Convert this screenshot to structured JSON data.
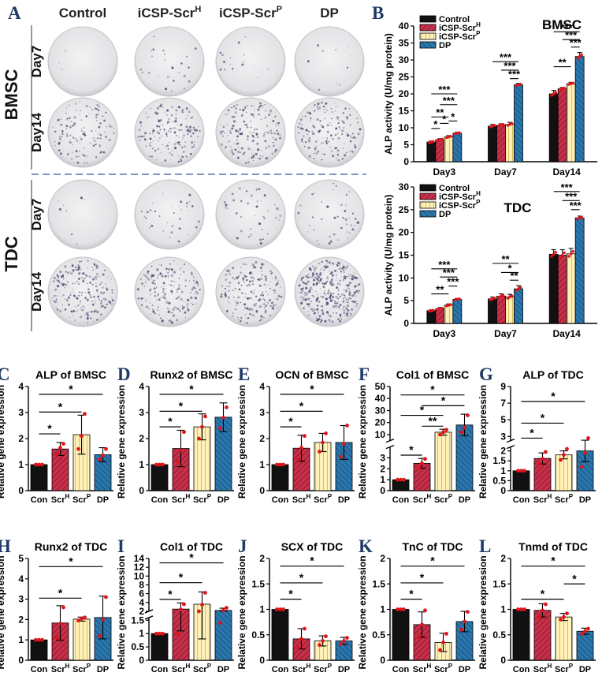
{
  "colors": {
    "control": "#111111",
    "scrH": "#c8304a",
    "scrP": "#fff1b8",
    "dp": "#2a77ad",
    "point": "#e0141b",
    "panel_letter": "#1f3a66",
    "plate": "#e8e8ea",
    "dots": "#4a4670"
  },
  "panel_a": {
    "letter": "A",
    "columns": [
      "Control",
      "iCSP-Scr",
      "iCSP-Scr",
      "DP"
    ],
    "column_sups": [
      "",
      "H",
      "P",
      ""
    ],
    "groups": [
      {
        "label": "BMSC",
        "rows": [
          "Day7",
          "Day14"
        ]
      },
      {
        "label": "TDC",
        "rows": [
          "Day7",
          "Day14"
        ]
      }
    ],
    "stain_density": [
      [
        3,
        25,
        18,
        10
      ],
      [
        130,
        165,
        170,
        150
      ],
      [
        8,
        35,
        45,
        45
      ],
      [
        210,
        180,
        190,
        360
      ]
    ]
  },
  "legend": {
    "items": [
      {
        "text": "Control",
        "sup": ""
      },
      {
        "text": "iCSP-Scr",
        "sup": "H"
      },
      {
        "text": "iCSP-Scr",
        "sup": "P"
      },
      {
        "text": "DP",
        "sup": ""
      }
    ]
  },
  "chart_data": [
    {
      "id": "B-BMSC",
      "letter": "B",
      "type": "bar",
      "title": "BMSC",
      "ylabel": "ALP activity (U/mg protein)",
      "ylim": [
        0,
        40
      ],
      "yticks": [
        0,
        5,
        10,
        15,
        20,
        25,
        30,
        35,
        40
      ],
      "categories": [
        "Day3",
        "Day7",
        "Day14"
      ],
      "series": [
        {
          "name": "Control",
          "values": [
            5.8,
            10.5,
            20.0
          ],
          "errors": [
            0.3,
            0.5,
            1.0
          ]
        },
        {
          "name": "iCSP-ScrH",
          "values": [
            6.5,
            10.8,
            21.5
          ],
          "errors": [
            0.3,
            0.4,
            0.4
          ]
        },
        {
          "name": "iCSP-ScrP",
          "values": [
            7.3,
            11.0,
            23.0
          ],
          "errors": [
            0.4,
            0.6,
            0.4
          ]
        },
        {
          "name": "DP",
          "values": [
            8.4,
            22.7,
            31.0
          ],
          "errors": [
            0.3,
            0.4,
            1.2
          ]
        }
      ],
      "significance": [
        {
          "cat": 0,
          "from": 0,
          "to": 1,
          "y": 9.8,
          "text": "*"
        },
        {
          "cat": 0,
          "from": 1,
          "to": 2,
          "y": 11.3,
          "text": "*"
        },
        {
          "cat": 0,
          "from": 2,
          "to": 3,
          "y": 12.0,
          "text": "*"
        },
        {
          "cat": 0,
          "from": 0,
          "to": 2,
          "y": 13.2,
          "text": "**"
        },
        {
          "cat": 0,
          "from": 1,
          "to": 3,
          "y": 16.8,
          "text": "***"
        },
        {
          "cat": 0,
          "from": 0,
          "to": 3,
          "y": 20.0,
          "text": "***"
        },
        {
          "cat": 1,
          "from": 2,
          "to": 3,
          "y": 24.5,
          "text": "***"
        },
        {
          "cat": 1,
          "from": 1,
          "to": 3,
          "y": 27.0,
          "text": "***"
        },
        {
          "cat": 1,
          "from": 0,
          "to": 3,
          "y": 29.5,
          "text": "***"
        },
        {
          "cat": 2,
          "from": 0,
          "to": 2,
          "y": 28.0,
          "text": "**"
        },
        {
          "cat": 2,
          "from": 2,
          "to": 3,
          "y": 33.8,
          "text": "***"
        },
        {
          "cat": 2,
          "from": 1,
          "to": 3,
          "y": 36.0,
          "text": "***"
        },
        {
          "cat": 2,
          "from": 0,
          "to": 3,
          "y": 38.3,
          "text": "***"
        }
      ]
    },
    {
      "id": "B-TDC",
      "letter": "",
      "type": "bar",
      "title": "TDC",
      "ylabel": "ALP activity (U/mg protein)",
      "ylim": [
        0,
        30
      ],
      "yticks": [
        0,
        5,
        10,
        15,
        20,
        25,
        30
      ],
      "categories": [
        "Day3",
        "Day7",
        "Day14"
      ],
      "series": [
        {
          "name": "Control",
          "values": [
            2.8,
            5.4,
            15.2
          ],
          "errors": [
            0.2,
            0.4,
            1.0
          ]
        },
        {
          "name": "iCSP-ScrH",
          "values": [
            3.2,
            6.0,
            15.0
          ],
          "errors": [
            0.3,
            0.5,
            1.2
          ]
        },
        {
          "name": "iCSP-ScrP",
          "values": [
            4.0,
            5.8,
            15.3
          ],
          "errors": [
            0.3,
            0.6,
            1.2
          ]
        },
        {
          "name": "DP",
          "values": [
            5.3,
            7.6,
            23.2
          ],
          "errors": [
            0.2,
            0.7,
            0.4
          ]
        }
      ],
      "significance": [
        {
          "cat": 0,
          "from": 0,
          "to": 2,
          "y": 6.5,
          "text": "**"
        },
        {
          "cat": 0,
          "from": 2,
          "to": 3,
          "y": 8.2,
          "text": "***"
        },
        {
          "cat": 0,
          "from": 1,
          "to": 3,
          "y": 10.2,
          "text": "***"
        },
        {
          "cat": 0,
          "from": 0,
          "to": 3,
          "y": 12.0,
          "text": "***"
        },
        {
          "cat": 1,
          "from": 2,
          "to": 3,
          "y": 9.5,
          "text": "**"
        },
        {
          "cat": 1,
          "from": 1,
          "to": 3,
          "y": 11.2,
          "text": "*"
        },
        {
          "cat": 1,
          "from": 0,
          "to": 3,
          "y": 13.2,
          "text": "**"
        },
        {
          "cat": 2,
          "from": 2,
          "to": 3,
          "y": 25.0,
          "text": "***"
        },
        {
          "cat": 2,
          "from": 1,
          "to": 3,
          "y": 27.0,
          "text": "***"
        },
        {
          "cat": 2,
          "from": 0,
          "to": 3,
          "y": 29.0,
          "text": "***"
        }
      ]
    },
    {
      "id": "C",
      "letter": "C",
      "type": "bar",
      "title": "ALP of BMSC",
      "ylabel": "Relative gene expression",
      "ylim": [
        0,
        4
      ],
      "yticks": [
        0,
        1,
        2,
        3,
        4
      ],
      "categories": [
        "Con",
        "Scr",
        "Scr",
        "DP"
      ],
      "cat_sups": [
        "",
        "H",
        "P",
        ""
      ],
      "values": [
        1.0,
        1.6,
        2.15,
        1.38
      ],
      "errors": [
        0.02,
        0.25,
        0.75,
        0.27
      ],
      "points": [
        [
          1.0,
          1.0,
          1.0
        ],
        [
          1.4,
          1.65,
          1.8
        ],
        [
          1.6,
          2.1,
          2.95
        ],
        [
          1.2,
          1.35,
          1.6
        ]
      ],
      "significance": [
        {
          "from": 0,
          "to": 1,
          "y": 2.18,
          "text": "*"
        },
        {
          "from": 0,
          "to": 2,
          "y": 3.02,
          "text": "*"
        },
        {
          "from": 0,
          "to": 3,
          "y": 3.7,
          "text": "*"
        }
      ]
    },
    {
      "id": "D",
      "letter": "D",
      "type": "bar",
      "title": "Runx2 of BMSC",
      "ylabel": "Relative gene expression",
      "ylim": [
        0,
        4
      ],
      "yticks": [
        0,
        1,
        2,
        3,
        4
      ],
      "categories": [
        "Con",
        "Scr",
        "Scr",
        "DP"
      ],
      "cat_sups": [
        "",
        "H",
        "P",
        ""
      ],
      "values": [
        1.0,
        1.62,
        2.45,
        2.82
      ],
      "errors": [
        0.02,
        0.7,
        0.5,
        0.55
      ],
      "points": [
        [
          1.0,
          1.0,
          1.0
        ],
        [
          1.1,
          1.55,
          2.25
        ],
        [
          2.0,
          2.45,
          2.85
        ],
        [
          2.4,
          2.8,
          3.2
        ]
      ],
      "significance": [
        {
          "from": 0,
          "to": 1,
          "y": 2.45,
          "text": "*"
        },
        {
          "from": 0,
          "to": 2,
          "y": 3.05,
          "text": "*"
        },
        {
          "from": 0,
          "to": 3,
          "y": 3.7,
          "text": "*"
        }
      ]
    },
    {
      "id": "E",
      "letter": "E",
      "type": "bar",
      "title": "OCN of BMSC",
      "ylabel": "Relative gene expression",
      "ylim": [
        0,
        4
      ],
      "yticks": [
        0,
        1,
        2,
        3,
        4
      ],
      "categories": [
        "Con",
        "Scr",
        "Scr",
        "DP"
      ],
      "cat_sups": [
        "",
        "H",
        "P",
        ""
      ],
      "values": [
        1.0,
        1.63,
        1.85,
        1.85
      ],
      "errors": [
        0.02,
        0.5,
        0.35,
        0.65
      ],
      "points": [
        [
          1.0,
          1.0,
          1.0
        ],
        [
          1.2,
          1.65,
          2.1
        ],
        [
          1.5,
          1.85,
          2.2
        ],
        [
          1.3,
          1.8,
          2.5
        ]
      ],
      "significance": [
        {
          "from": 0,
          "to": 1,
          "y": 2.45,
          "text": "*"
        },
        {
          "from": 0,
          "to": 2,
          "y": 3.05,
          "text": "*"
        },
        {
          "from": 0,
          "to": 3,
          "y": 3.7,
          "text": "*"
        }
      ]
    },
    {
      "id": "F",
      "letter": "F",
      "type": "bar",
      "title": "Col1 of BMSC",
      "ylabel": "Relative gene expression",
      "axis_break": {
        "low": [
          0,
          4
        ],
        "high": [
          5,
          50
        ]
      },
      "yticks": [
        0,
        1,
        2,
        3,
        10,
        20,
        30,
        40,
        50
      ],
      "categories": [
        "Con",
        "Scr",
        "Scr",
        "DP"
      ],
      "cat_sups": [
        "",
        "H",
        "P",
        ""
      ],
      "values": [
        1.0,
        2.5,
        12.0,
        18.0
      ],
      "errors": [
        0.03,
        0.45,
        2.5,
        9.0
      ],
      "points": [
        [
          1.0,
          1.0,
          1.0
        ],
        [
          2.1,
          2.5,
          2.9
        ],
        [
          10.0,
          12.0,
          14.0
        ],
        [
          12.0,
          16.0,
          26.0
        ]
      ],
      "significance": [
        {
          "from": 0,
          "to": 1,
          "y": 3.25,
          "text": "*"
        },
        {
          "from": 1,
          "to": 2,
          "y": 17.0,
          "text": "**"
        },
        {
          "from": 0,
          "to": 2,
          "y": 26.0,
          "text": "*"
        },
        {
          "from": 1,
          "to": 3,
          "y": 34.0,
          "text": "*"
        },
        {
          "from": 0,
          "to": 3,
          "y": 43.0,
          "text": "*"
        }
      ]
    },
    {
      "id": "G",
      "letter": "G",
      "type": "bar",
      "title": "ALP of TDC",
      "ylabel": "Relative gene expression",
      "axis_break": {
        "low": [
          0,
          2.2
        ],
        "high": [
          2.5,
          9
        ]
      },
      "yticks": [
        0,
        0.5,
        1.0,
        1.5,
        2.0,
        3,
        5,
        7,
        9
      ],
      "categories": [
        "Con",
        "Scr",
        "Scr",
        "DP"
      ],
      "cat_sups": [
        "",
        "H",
        "P",
        ""
      ],
      "values": [
        1.0,
        1.62,
        1.8,
        2.0
      ],
      "errors": [
        0.02,
        0.28,
        0.2,
        0.55
      ],
      "points": [
        [
          1.0,
          1.0,
          1.0
        ],
        [
          1.35,
          1.6,
          1.95
        ],
        [
          1.55,
          1.8,
          2.1
        ],
        [
          1.2,
          1.9,
          2.8
        ]
      ],
      "significance": [
        {
          "from": 0,
          "to": 1,
          "y": 2.8,
          "text": "*"
        },
        {
          "from": 0,
          "to": 2,
          "y": 4.6,
          "text": "*"
        },
        {
          "from": 0,
          "to": 3,
          "y": 7.2,
          "text": "*"
        }
      ]
    },
    {
      "id": "H",
      "letter": "H",
      "type": "bar",
      "title": "Runx2 of TDC",
      "ylabel": "Relative gene expression",
      "ylim": [
        0,
        5
      ],
      "yticks": [
        0,
        1,
        2,
        3,
        4,
        5
      ],
      "categories": [
        "Con",
        "Scr",
        "Scr",
        "DP"
      ],
      "cat_sups": [
        "",
        "H",
        "P",
        ""
      ],
      "values": [
        1.0,
        1.83,
        2.02,
        2.1
      ],
      "errors": [
        0.02,
        0.85,
        0.1,
        1.05
      ],
      "points": [
        [
          1.0,
          1.0,
          1.0
        ],
        [
          1.1,
          1.8,
          2.6
        ],
        [
          1.95,
          2.05,
          2.1
        ],
        [
          1.2,
          2.0,
          3.1
        ]
      ],
      "significance": [
        {
          "from": 0,
          "to": 2,
          "y": 3.05,
          "text": "*"
        },
        {
          "from": 0,
          "to": 3,
          "y": 4.6,
          "text": "*"
        }
      ]
    },
    {
      "id": "I",
      "letter": "I",
      "type": "bar",
      "title": "Col1 of TDC",
      "ylabel": "Relative gene expression",
      "axis_break": {
        "low": [
          0,
          1.6
        ],
        "high": [
          2,
          14
        ]
      },
      "yticks": [
        0,
        0.5,
        1.0,
        1.5,
        2,
        4,
        6,
        8,
        10,
        12,
        14
      ],
      "categories": [
        "Con",
        "Scr",
        "Scr",
        "DP"
      ],
      "cat_sups": [
        "",
        "H",
        "P",
        ""
      ],
      "values": [
        1.0,
        2.5,
        3.6,
        2.2
      ],
      "errors": [
        0.02,
        1.4,
        2.8,
        0.5
      ],
      "points": [
        [
          1.0,
          1.0,
          1.0
        ],
        [
          1.0,
          2.4,
          3.6
        ],
        [
          2.0,
          3.5,
          6.2
        ],
        [
          1.4,
          2.2,
          2.8
        ]
      ],
      "significance": [
        {
          "from": 0,
          "to": 1,
          "y": 4.7,
          "text": "*"
        },
        {
          "from": 0,
          "to": 2,
          "y": 8.5,
          "text": "*"
        },
        {
          "from": 0,
          "to": 3,
          "y": 13.0,
          "text": "*"
        }
      ]
    },
    {
      "id": "J",
      "letter": "J",
      "type": "bar",
      "title": "SCX of TDC",
      "ylabel": "Relative gene expression",
      "ylim": [
        0,
        2.0
      ],
      "yticks": [
        0,
        0.5,
        1.0,
        1.5,
        2.0
      ],
      "categories": [
        "Con",
        "Scr",
        "Scr",
        "DP"
      ],
      "cat_sups": [
        "",
        "H",
        "P",
        ""
      ],
      "values": [
        1.0,
        0.42,
        0.38,
        0.38
      ],
      "errors": [
        0.01,
        0.2,
        0.1,
        0.07
      ],
      "points": [
        [
          1.0,
          1.0,
          1.0
        ],
        [
          0.25,
          0.42,
          0.62
        ],
        [
          0.3,
          0.38,
          0.47
        ],
        [
          0.32,
          0.38,
          0.44
        ]
      ],
      "significance": [
        {
          "from": 0,
          "to": 1,
          "y": 1.2,
          "text": "*"
        },
        {
          "from": 0,
          "to": 2,
          "y": 1.52,
          "text": "*"
        },
        {
          "from": 0,
          "to": 3,
          "y": 1.85,
          "text": "*"
        }
      ]
    },
    {
      "id": "K",
      "letter": "K",
      "type": "bar",
      "title": "TnC of TDC",
      "ylabel": "Relative gene expression",
      "ylim": [
        0,
        2.0
      ],
      "yticks": [
        0,
        0.5,
        1.0,
        1.5,
        2.0
      ],
      "categories": [
        "Con",
        "Scr",
        "Scr",
        "DP"
      ],
      "cat_sups": [
        "",
        "H",
        "P",
        ""
      ],
      "values": [
        1.0,
        0.7,
        0.35,
        0.76
      ],
      "errors": [
        0.01,
        0.25,
        0.18,
        0.2
      ],
      "points": [
        [
          1.0,
          1.0,
          1.0
        ],
        [
          0.45,
          0.7,
          0.98
        ],
        [
          0.2,
          0.35,
          0.52
        ],
        [
          0.6,
          0.76,
          0.95
        ]
      ],
      "significance": [
        {
          "from": 0,
          "to": 1,
          "y": 1.2,
          "text": "*"
        },
        {
          "from": 0,
          "to": 2,
          "y": 1.52,
          "text": "*"
        },
        {
          "from": 0,
          "to": 3,
          "y": 1.85,
          "text": "*"
        }
      ]
    },
    {
      "id": "L",
      "letter": "L",
      "type": "bar",
      "title": "Tnmd of TDC",
      "ylabel": "Relative gene expression",
      "ylim": [
        0,
        2.0
      ],
      "yticks": [
        0,
        0.5,
        1.0,
        1.5,
        2.0
      ],
      "categories": [
        "Con",
        "Scr",
        "Scr",
        "DP"
      ],
      "cat_sups": [
        "",
        "H",
        "P",
        ""
      ],
      "values": [
        1.0,
        0.98,
        0.85,
        0.57
      ],
      "errors": [
        0.01,
        0.13,
        0.07,
        0.06
      ],
      "points": [
        [
          1.0,
          1.0,
          1.0
        ],
        [
          0.85,
          0.98,
          1.1
        ],
        [
          0.8,
          0.85,
          0.92
        ],
        [
          0.52,
          0.57,
          0.62
        ]
      ],
      "significance": [
        {
          "from": 0,
          "to": 2,
          "y": 1.2,
          "text": "*"
        },
        {
          "from": 2,
          "to": 3,
          "y": 1.5,
          "text": "*"
        },
        {
          "from": 0,
          "to": 3,
          "y": 1.85,
          "text": "*"
        }
      ]
    }
  ]
}
